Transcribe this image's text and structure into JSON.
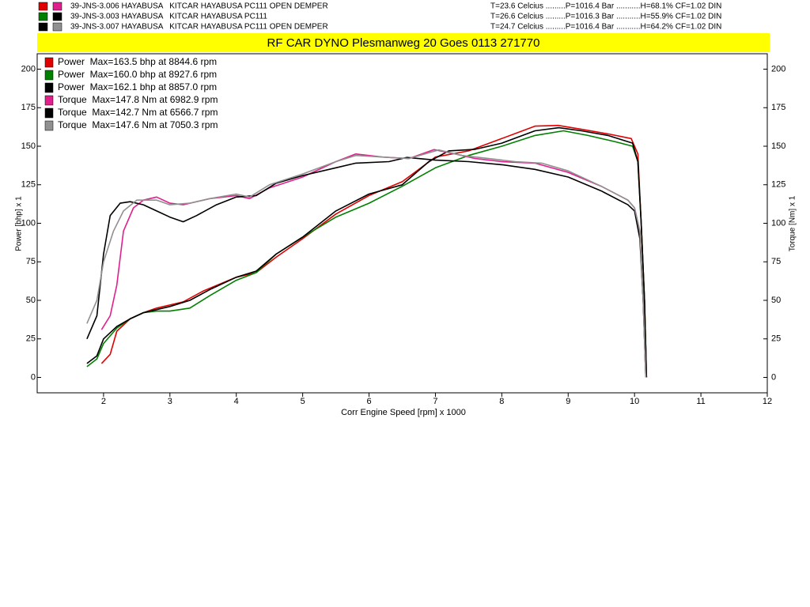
{
  "runs": [
    {
      "label": "39-JNS-3.006 HAYABUSA   KITCAR HAYABUSA PC111 OPEN DEMPER",
      "conditions": "T=23.6 Celcius .........P=1016.4 Bar ...........H=68.1% CF=1.02 DIN"
    },
    {
      "label": "39-JNS-3.003 HAYABUSA   KITCAR HAYABUSA PC111",
      "conditions": "T=26.6 Celcius .........P=1016.3 Bar ...........H=55.9% CF=1.02 DIN"
    },
    {
      "label": "39-JNS-3.007 HAYABUSA   KITCAR HAYABUSA PC111 OPEN DEMPER",
      "conditions": "T=24.7 Celcius .........P=1016.4 Bar ...........H=64.2% CF=1.02 DIN"
    }
  ],
  "chart_data": {
    "type": "line",
    "title": "RF CAR DYNO  Plesmanweg 20 Goes  0113 271770",
    "x_label": "Corr Engine Speed [rpm] x 1000",
    "y_label": "Power [bhp] x 1",
    "y2_label": "Torque [Nm] x 1",
    "xlim": [
      1,
      12
    ],
    "xticks": [
      2,
      3,
      4,
      5,
      6,
      7,
      8,
      9,
      10,
      11,
      12
    ],
    "ylim": [
      -10,
      210
    ],
    "yticks": [
      0,
      25,
      50,
      75,
      100,
      125,
      150,
      175,
      200
    ],
    "y2lim": [
      -10,
      210
    ],
    "y2ticks": [
      0,
      25,
      50,
      75,
      100,
      125,
      150,
      175,
      200
    ],
    "grid": false,
    "legend": "top-left",
    "series": [
      {
        "name": "Power  Max=163.5 bhp at 8844.6 rpm",
        "color": "#e00000",
        "x": [
          1.97,
          2.1,
          2.2,
          2.4,
          2.6,
          2.8,
          3,
          3.2,
          3.5,
          4,
          4.3,
          4.6,
          5,
          5.5,
          6,
          6.5,
          7,
          7.5,
          8,
          8.5,
          8.85,
          9.2,
          9.6,
          9.95,
          10.05,
          10.1,
          10.15,
          10.18
        ],
        "values": [
          9,
          15,
          30,
          38,
          42,
          45,
          47,
          49,
          56,
          65,
          68,
          78,
          90,
          106,
          118,
          127,
          143,
          147,
          155,
          163,
          163.5,
          161,
          158,
          155,
          145,
          100,
          50,
          0
        ]
      },
      {
        "name": "Power  Max=160.0 bhp at 8927.6 rpm",
        "color": "#008000",
        "x": [
          1.75,
          1.9,
          2,
          2.2,
          2.4,
          2.6,
          2.8,
          3,
          3.3,
          3.6,
          4,
          4.3,
          4.6,
          5,
          5.5,
          6,
          6.5,
          7,
          7.5,
          8,
          8.5,
          8.93,
          9.3,
          9.7,
          9.97,
          10.05,
          10.1,
          10.15,
          10.18
        ],
        "values": [
          7,
          12,
          22,
          32,
          38,
          42,
          43,
          43,
          45,
          53,
          63,
          68,
          80,
          91,
          104,
          113,
          124,
          136,
          144,
          150,
          157,
          160,
          157,
          153,
          150,
          140,
          100,
          50,
          0
        ]
      },
      {
        "name": "Power  Max=162.1 bhp at 8857.0 rpm",
        "color": "#000000",
        "x": [
          1.75,
          1.9,
          2,
          2.2,
          2.4,
          2.6,
          2.8,
          3,
          3.3,
          3.6,
          4,
          4.3,
          4.6,
          5,
          5.5,
          6,
          6.5,
          6.9,
          7.2,
          7.6,
          8,
          8.5,
          8.86,
          9.2,
          9.6,
          9.97,
          10.05,
          10.1,
          10.15,
          10.18
        ],
        "values": [
          9,
          14,
          25,
          33,
          38,
          42,
          44,
          46,
          50,
          57,
          65,
          69,
          80,
          91,
          108,
          119,
          125,
          140,
          147,
          148,
          152,
          160,
          162,
          160,
          157,
          152,
          140,
          100,
          50,
          0
        ]
      },
      {
        "name": "Torque  Max=147.8 Nm at 6982.9 rpm",
        "color": "#e0208c",
        "axis": "y2",
        "x": [
          1.97,
          2.1,
          2.2,
          2.3,
          2.45,
          2.6,
          2.8,
          3,
          3.2,
          3.6,
          4,
          4.2,
          4.5,
          5,
          5.5,
          5.8,
          6.2,
          6.6,
          6.98,
          7.3,
          7.6,
          8,
          8.5,
          9,
          9.5,
          9.9,
          10,
          10.08,
          10.13,
          10.17
        ],
        "values": [
          31,
          40,
          60,
          95,
          110,
          115,
          117,
          113,
          112,
          116,
          118,
          116,
          123,
          130,
          140,
          145,
          143,
          142,
          147.8,
          145,
          142,
          140,
          139,
          133,
          124,
          115,
          110,
          95,
          50,
          0
        ]
      },
      {
        "name": "Torque  Max=142.7 Nm at 6566.7 rpm",
        "color": "#000000",
        "axis": "y2",
        "x": [
          1.75,
          1.9,
          2,
          2.1,
          2.25,
          2.4,
          2.6,
          2.8,
          3,
          3.2,
          3.4,
          3.7,
          4,
          4.3,
          4.6,
          5,
          5.5,
          5.8,
          6.3,
          6.57,
          7,
          7.5,
          8,
          8.5,
          9,
          9.5,
          9.9,
          10,
          10.08,
          10.13,
          10.17
        ],
        "values": [
          25,
          40,
          80,
          105,
          113,
          114,
          112,
          108,
          104,
          101,
          105,
          112,
          117,
          118,
          126,
          131,
          136,
          139,
          140,
          142.7,
          141,
          140,
          138,
          135,
          130,
          121,
          112,
          108,
          90,
          50,
          0
        ]
      },
      {
        "name": "Torque  Max=147.6 Nm at 7050.3 rpm",
        "color": "#909090",
        "axis": "y2",
        "x": [
          1.75,
          1.9,
          2,
          2.15,
          2.3,
          2.5,
          2.8,
          3,
          3.3,
          3.6,
          4,
          4.2,
          4.5,
          5,
          5.5,
          5.8,
          6.2,
          6.6,
          7.05,
          7.4,
          7.8,
          8.2,
          8.6,
          9,
          9.5,
          9.9,
          10,
          10.08,
          10.13,
          10.17
        ],
        "values": [
          35,
          50,
          75,
          95,
          108,
          115,
          115,
          112,
          113,
          116,
          119,
          117,
          125,
          132,
          140,
          144,
          143,
          142,
          147.6,
          144,
          142,
          140,
          139,
          134,
          124,
          115,
          110,
          95,
          50,
          0
        ]
      }
    ]
  }
}
